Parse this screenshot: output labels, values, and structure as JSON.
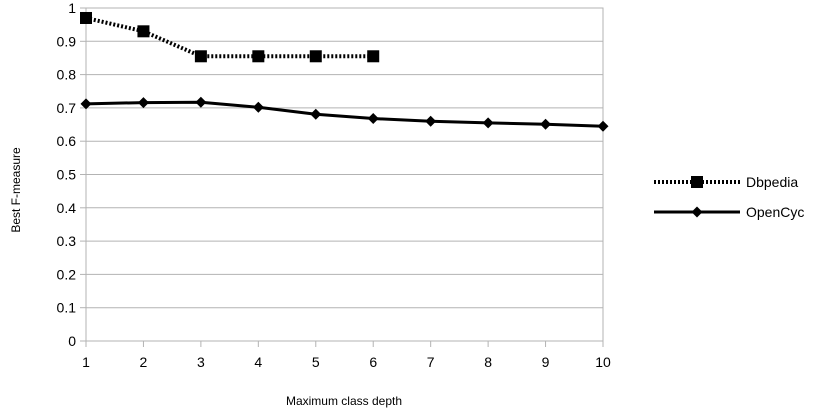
{
  "chart_data": {
    "type": "line",
    "title": "",
    "xlabel": "Maximum class depth",
    "ylabel": "Best F-measure",
    "x": [
      1,
      2,
      3,
      4,
      5,
      6,
      7,
      8,
      9,
      10
    ],
    "xlim": [
      1,
      10
    ],
    "ylim": [
      0,
      1
    ],
    "y_ticks": [
      "0",
      "0.1",
      "0.2",
      "0.3",
      "0.4",
      "0.5",
      "0.6",
      "0.7",
      "0.8",
      "0.9",
      "1"
    ],
    "x_ticks": [
      "1",
      "2",
      "3",
      "4",
      "5",
      "6",
      "7",
      "8",
      "9",
      "10"
    ],
    "grid": true,
    "legend_position": "right",
    "series": [
      {
        "name": "Dbpedia",
        "x": [
          1,
          2,
          3,
          4,
          5,
          6
        ],
        "values": [
          0.97,
          0.93,
          0.855,
          0.855,
          0.855,
          0.855
        ],
        "marker": "square",
        "line_style": "dotted",
        "color": "#000000"
      },
      {
        "name": "OpenCyc",
        "x": [
          1,
          2,
          3,
          4,
          5,
          6,
          7,
          8,
          9,
          10
        ],
        "values": [
          0.712,
          0.716,
          0.717,
          0.702,
          0.681,
          0.668,
          0.66,
          0.655,
          0.651,
          0.645
        ],
        "marker": "diamond",
        "line_style": "solid",
        "color": "#000000"
      }
    ]
  }
}
